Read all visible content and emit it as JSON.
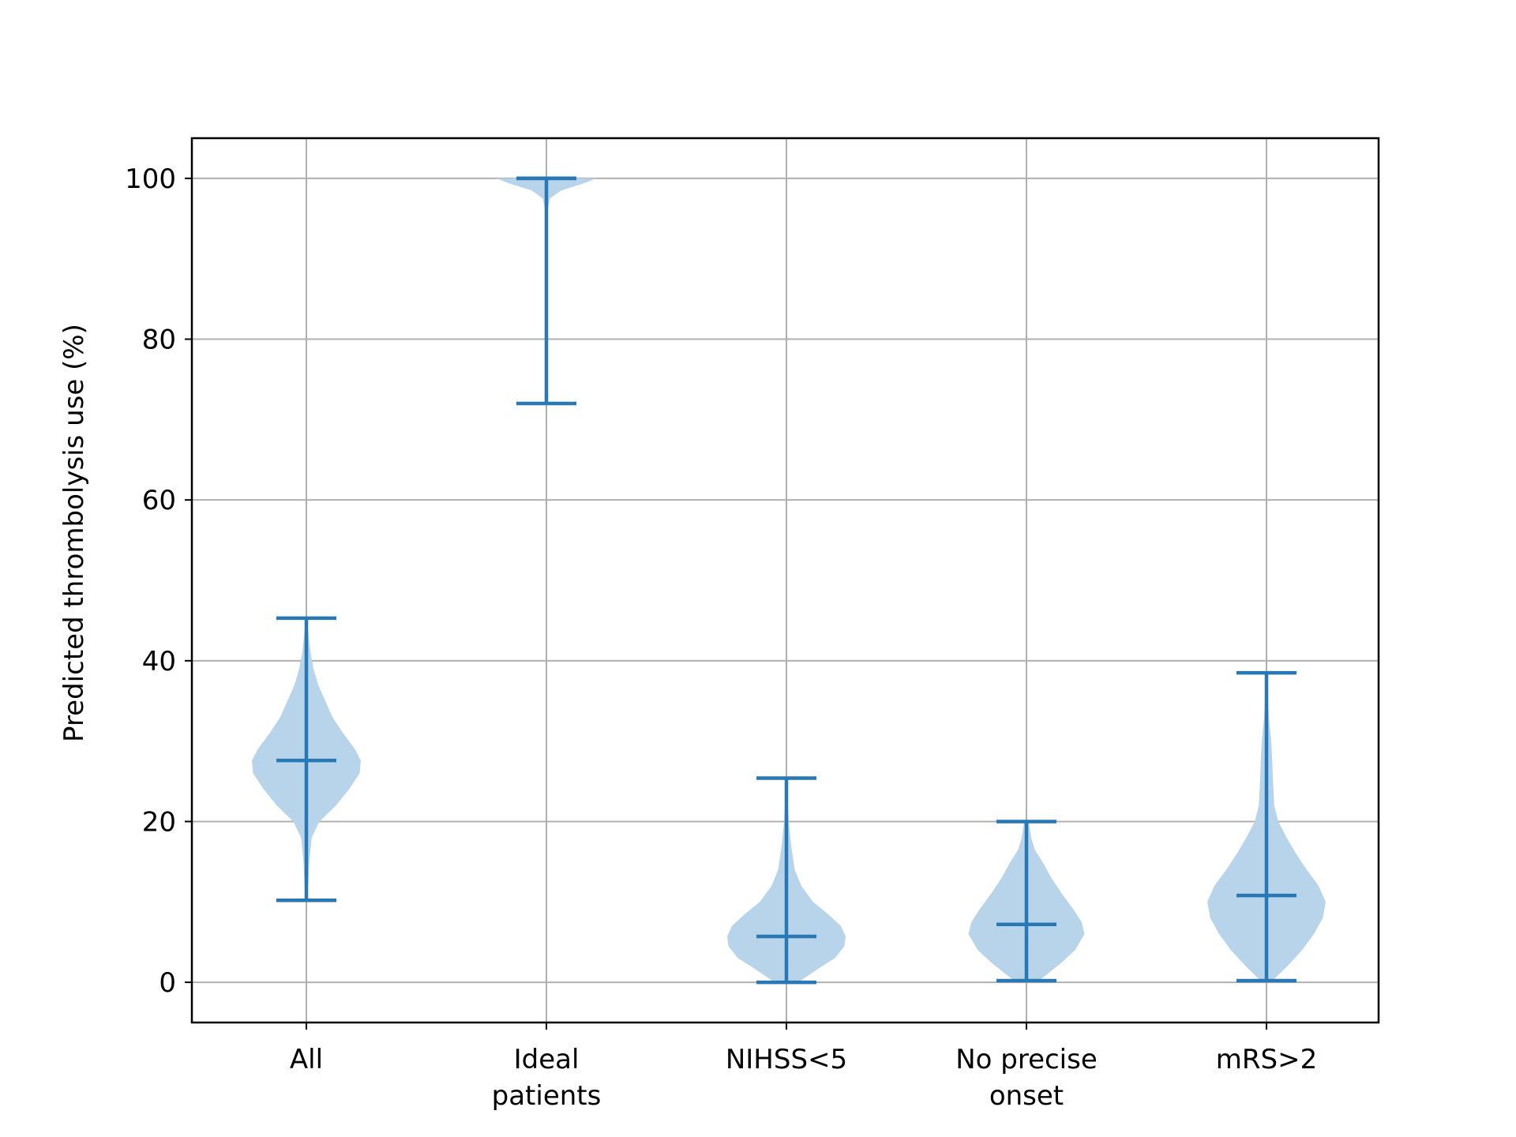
{
  "chart_data": {
    "type": "violin",
    "title": "",
    "xlabel": "",
    "ylabel": "Predicted thrombolysis use (%)",
    "ylim": [
      -5,
      105
    ],
    "yticks": [
      0,
      20,
      40,
      60,
      80,
      100
    ],
    "grid": true,
    "legend": "none",
    "categories": [
      [
        "All"
      ],
      [
        "Ideal",
        "patients"
      ],
      [
        "NIHSS<5"
      ],
      [
        "No precise",
        "onset"
      ],
      [
        "mRS>2"
      ]
    ],
    "series": [
      {
        "min": 10.2,
        "max": 45.3,
        "mean": 27.6,
        "density": [
          [
            10.2,
            0.02
          ],
          [
            12,
            0.03
          ],
          [
            15,
            0.05
          ],
          [
            18,
            0.09
          ],
          [
            20,
            0.22
          ],
          [
            22,
            0.5
          ],
          [
            24,
            0.72
          ],
          [
            26,
            0.9
          ],
          [
            27.6,
            0.92
          ],
          [
            29,
            0.82
          ],
          [
            31,
            0.62
          ],
          [
            33,
            0.44
          ],
          [
            35,
            0.32
          ],
          [
            37,
            0.2
          ],
          [
            39,
            0.12
          ],
          [
            41,
            0.07
          ],
          [
            43,
            0.04
          ],
          [
            45.3,
            0.01
          ]
        ]
      },
      {
        "min": 72,
        "max": 100,
        "mean": 100,
        "density": [
          [
            72,
            0.0
          ],
          [
            90,
            0.01
          ],
          [
            96,
            0.02
          ],
          [
            97.5,
            0.06
          ],
          [
            98.5,
            0.25
          ],
          [
            99.3,
            0.6
          ],
          [
            100,
            0.85
          ]
        ]
      },
      {
        "min": 0,
        "max": 25.4,
        "mean": 5.7,
        "density": [
          [
            0,
            0.2
          ],
          [
            1,
            0.4
          ],
          [
            2,
            0.6
          ],
          [
            3,
            0.82
          ],
          [
            4.5,
            0.98
          ],
          [
            5.7,
            1.0
          ],
          [
            7,
            0.92
          ],
          [
            8.5,
            0.7
          ],
          [
            10,
            0.45
          ],
          [
            12,
            0.25
          ],
          [
            14,
            0.14
          ],
          [
            17,
            0.08
          ],
          [
            20,
            0.04
          ],
          [
            23,
            0.02
          ],
          [
            25.4,
            0.01
          ]
        ]
      },
      {
        "min": 0.2,
        "max": 20.0,
        "mean": 7.2,
        "density": [
          [
            0.2,
            0.2
          ],
          [
            1,
            0.35
          ],
          [
            2.5,
            0.6
          ],
          [
            4,
            0.82
          ],
          [
            6,
            0.98
          ],
          [
            7.5,
            0.93
          ],
          [
            9,
            0.8
          ],
          [
            11,
            0.6
          ],
          [
            13,
            0.42
          ],
          [
            15,
            0.27
          ],
          [
            16.5,
            0.14
          ],
          [
            18,
            0.08
          ],
          [
            20,
            0.04
          ]
        ]
      },
      {
        "min": 0.2,
        "max": 38.5,
        "mean": 10.8,
        "density": [
          [
            0.2,
            0.1
          ],
          [
            2,
            0.35
          ],
          [
            4,
            0.6
          ],
          [
            6,
            0.8
          ],
          [
            8,
            0.95
          ],
          [
            10,
            1.0
          ],
          [
            12,
            0.88
          ],
          [
            14,
            0.68
          ],
          [
            16,
            0.5
          ],
          [
            18,
            0.34
          ],
          [
            20,
            0.2
          ],
          [
            22,
            0.13
          ],
          [
            25,
            0.11
          ],
          [
            27,
            0.1
          ],
          [
            30,
            0.08
          ],
          [
            33,
            0.04
          ],
          [
            36,
            0.02
          ],
          [
            38.5,
            0.01
          ]
        ]
      }
    ]
  },
  "style": {
    "violin_fill": "#b8d4ea",
    "line_color": "#2878b5",
    "grid_color": "#b0b0b0"
  }
}
